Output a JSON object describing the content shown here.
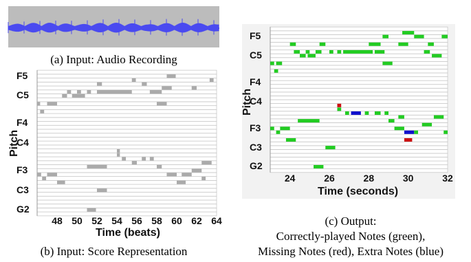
{
  "figure": {
    "panel_a": {
      "caption": "(a) Input: Audio Recording",
      "waveform_color": "#4a4af0",
      "background_color": "#bcbcbc"
    },
    "panel_b": {
      "caption": "(b) Input: Score Representation",
      "ylabel": "Pitch",
      "xlabel": "Time (beats)",
      "pitch_labels": [
        "F5",
        "C5",
        "F4",
        "C4",
        "F3",
        "C3",
        "G2"
      ],
      "note_color": "#aaaaaa"
    },
    "panel_c": {
      "caption_line1": "(c) Output:",
      "caption_line2": "Correctly-played Notes (green),",
      "caption_line3": "Missing Notes (red), Extra Notes (blue)",
      "ylabel": "Pitch",
      "xlabel": "Time (seconds)",
      "pitch_labels": [
        "F5",
        "C5",
        "F4",
        "C4",
        "F3",
        "C3",
        "G2"
      ],
      "colors": {
        "correct": "#22cc22",
        "missing": "#cc1111",
        "extra": "#1111cc"
      }
    }
  },
  "chart_data": [
    {
      "type": "bar",
      "title": "",
      "xlabel": "Time (beats)",
      "ylabel": "Pitch",
      "x_ticks": [
        "48",
        "50",
        "52",
        "54",
        "56",
        "58",
        "60",
        "62",
        "64"
      ],
      "xlim": [
        46,
        64
      ],
      "y_tick_labels": [
        "F5",
        "C5",
        "F4",
        "C4",
        "F3",
        "C3",
        "G2"
      ],
      "y_tick_midi": [
        77,
        72,
        65,
        60,
        53,
        48,
        43
      ],
      "ylim": [
        42,
        78
      ],
      "notes": [
        {
          "start": 59.0,
          "end": 59.9,
          "pitch": 77
        },
        {
          "start": 55.5,
          "end": 55.9,
          "pitch": 76
        },
        {
          "start": 63.3,
          "end": 63.7,
          "pitch": 76
        },
        {
          "start": 52.0,
          "end": 52.5,
          "pitch": 75
        },
        {
          "start": 56.5,
          "end": 57.0,
          "pitch": 75
        },
        {
          "start": 58.5,
          "end": 59.5,
          "pitch": 74
        },
        {
          "start": 61.5,
          "end": 62.0,
          "pitch": 74
        },
        {
          "start": 49.0,
          "end": 49.4,
          "pitch": 73
        },
        {
          "start": 50.0,
          "end": 50.4,
          "pitch": 73
        },
        {
          "start": 51.0,
          "end": 51.4,
          "pitch": 73
        },
        {
          "start": 52.0,
          "end": 55.5,
          "pitch": 73
        },
        {
          "start": 57.3,
          "end": 58.5,
          "pitch": 73
        },
        {
          "start": 48.5,
          "end": 49.0,
          "pitch": 72
        },
        {
          "start": 49.5,
          "end": 50.8,
          "pitch": 72
        },
        {
          "start": 46.0,
          "end": 46.3,
          "pitch": 70
        },
        {
          "start": 47.0,
          "end": 48.0,
          "pitch": 70
        },
        {
          "start": 58.0,
          "end": 59.0,
          "pitch": 70
        },
        {
          "start": 46.3,
          "end": 46.7,
          "pitch": 68
        },
        {
          "start": 54.0,
          "end": 54.3,
          "pitch": 58
        },
        {
          "start": 54.0,
          "end": 54.3,
          "pitch": 57
        },
        {
          "start": 54.5,
          "end": 54.9,
          "pitch": 56
        },
        {
          "start": 56.5,
          "end": 56.9,
          "pitch": 56
        },
        {
          "start": 57.3,
          "end": 57.7,
          "pitch": 56
        },
        {
          "start": 55.5,
          "end": 56.0,
          "pitch": 55
        },
        {
          "start": 62.5,
          "end": 63.5,
          "pitch": 55
        },
        {
          "start": 51.0,
          "end": 53.0,
          "pitch": 54
        },
        {
          "start": 58.0,
          "end": 58.5,
          "pitch": 54
        },
        {
          "start": 61.5,
          "end": 62.5,
          "pitch": 53
        },
        {
          "start": 46.0,
          "end": 46.4,
          "pitch": 52
        },
        {
          "start": 47.0,
          "end": 48.0,
          "pitch": 52
        },
        {
          "start": 59.0,
          "end": 60.0,
          "pitch": 52
        },
        {
          "start": 60.5,
          "end": 61.5,
          "pitch": 52
        },
        {
          "start": 46.5,
          "end": 46.9,
          "pitch": 51
        },
        {
          "start": 62.5,
          "end": 62.9,
          "pitch": 51
        },
        {
          "start": 48.0,
          "end": 48.8,
          "pitch": 50
        },
        {
          "start": 60.0,
          "end": 60.9,
          "pitch": 50
        },
        {
          "start": 52.0,
          "end": 53.0,
          "pitch": 48
        },
        {
          "start": 51.0,
          "end": 51.9,
          "pitch": 43
        }
      ]
    },
    {
      "type": "bar",
      "title": "",
      "xlabel": "Time (seconds)",
      "ylabel": "Pitch",
      "x_ticks": [
        "24",
        "26",
        "28",
        "30",
        "32"
      ],
      "xlim": [
        23.0,
        32.0
      ],
      "y_tick_labels": [
        "F5",
        "C5",
        "F4",
        "C4",
        "F3",
        "C3",
        "G2"
      ],
      "y_tick_midi": [
        77,
        72,
        65,
        60,
        53,
        48,
        43
      ],
      "ylim": [
        42,
        79
      ],
      "notes": [
        {
          "start": 29.7,
          "end": 30.3,
          "pitch": 78,
          "kind": "correct"
        },
        {
          "start": 28.7,
          "end": 29.0,
          "pitch": 77,
          "kind": "correct"
        },
        {
          "start": 30.3,
          "end": 30.8,
          "pitch": 77,
          "kind": "correct"
        },
        {
          "start": 31.7,
          "end": 32.0,
          "pitch": 77,
          "kind": "correct"
        },
        {
          "start": 24.0,
          "end": 24.3,
          "pitch": 75,
          "kind": "correct"
        },
        {
          "start": 25.5,
          "end": 25.8,
          "pitch": 75,
          "kind": "correct"
        },
        {
          "start": 28.0,
          "end": 28.6,
          "pitch": 75,
          "kind": "correct"
        },
        {
          "start": 29.5,
          "end": 30.0,
          "pitch": 75,
          "kind": "correct"
        },
        {
          "start": 31.0,
          "end": 31.3,
          "pitch": 75,
          "kind": "correct"
        },
        {
          "start": 24.2,
          "end": 24.5,
          "pitch": 73,
          "kind": "correct"
        },
        {
          "start": 24.8,
          "end": 25.0,
          "pitch": 73,
          "kind": "correct"
        },
        {
          "start": 25.3,
          "end": 25.6,
          "pitch": 73,
          "kind": "correct"
        },
        {
          "start": 26.0,
          "end": 26.2,
          "pitch": 73,
          "kind": "correct"
        },
        {
          "start": 26.4,
          "end": 26.6,
          "pitch": 73,
          "kind": "correct"
        },
        {
          "start": 26.7,
          "end": 28.2,
          "pitch": 73,
          "kind": "correct"
        },
        {
          "start": 28.3,
          "end": 28.8,
          "pitch": 73,
          "kind": "correct"
        },
        {
          "start": 30.8,
          "end": 31.1,
          "pitch": 73,
          "kind": "correct"
        },
        {
          "start": 24.5,
          "end": 24.8,
          "pitch": 72,
          "kind": "correct"
        },
        {
          "start": 24.9,
          "end": 25.3,
          "pitch": 72,
          "kind": "correct"
        },
        {
          "start": 31.2,
          "end": 31.7,
          "pitch": 72,
          "kind": "correct"
        },
        {
          "start": 23.0,
          "end": 23.2,
          "pitch": 70,
          "kind": "correct"
        },
        {
          "start": 23.3,
          "end": 23.6,
          "pitch": 70,
          "kind": "correct"
        },
        {
          "start": 28.7,
          "end": 29.2,
          "pitch": 70,
          "kind": "correct"
        },
        {
          "start": 23.2,
          "end": 23.4,
          "pitch": 68,
          "kind": "correct"
        },
        {
          "start": 26.4,
          "end": 26.6,
          "pitch": 59,
          "kind": "missing"
        },
        {
          "start": 26.4,
          "end": 26.6,
          "pitch": 58,
          "kind": "correct"
        },
        {
          "start": 26.8,
          "end": 27.0,
          "pitch": 57,
          "kind": "correct"
        },
        {
          "start": 27.1,
          "end": 27.6,
          "pitch": 57,
          "kind": "extra"
        },
        {
          "start": 27.8,
          "end": 28.0,
          "pitch": 57,
          "kind": "correct"
        },
        {
          "start": 28.3,
          "end": 28.6,
          "pitch": 57,
          "kind": "correct"
        },
        {
          "start": 28.8,
          "end": 29.0,
          "pitch": 57,
          "kind": "correct"
        },
        {
          "start": 29.5,
          "end": 29.8,
          "pitch": 56,
          "kind": "correct"
        },
        {
          "start": 31.3,
          "end": 31.8,
          "pitch": 56,
          "kind": "correct"
        },
        {
          "start": 24.4,
          "end": 25.5,
          "pitch": 55,
          "kind": "correct"
        },
        {
          "start": 29.0,
          "end": 29.3,
          "pitch": 55,
          "kind": "correct"
        },
        {
          "start": 30.7,
          "end": 31.2,
          "pitch": 54,
          "kind": "correct"
        },
        {
          "start": 23.0,
          "end": 23.2,
          "pitch": 53,
          "kind": "correct"
        },
        {
          "start": 23.5,
          "end": 24.0,
          "pitch": 53,
          "kind": "correct"
        },
        {
          "start": 29.3,
          "end": 29.8,
          "pitch": 53,
          "kind": "correct"
        },
        {
          "start": 23.3,
          "end": 23.5,
          "pitch": 52,
          "kind": "correct"
        },
        {
          "start": 29.8,
          "end": 30.3,
          "pitch": 52,
          "kind": "extra"
        },
        {
          "start": 30.3,
          "end": 30.5,
          "pitch": 52,
          "kind": "correct"
        },
        {
          "start": 31.8,
          "end": 32.0,
          "pitch": 52,
          "kind": "correct"
        },
        {
          "start": 23.8,
          "end": 24.3,
          "pitch": 50,
          "kind": "correct"
        },
        {
          "start": 29.8,
          "end": 30.2,
          "pitch": 50,
          "kind": "missing"
        },
        {
          "start": 25.8,
          "end": 26.3,
          "pitch": 48,
          "kind": "correct"
        },
        {
          "start": 25.2,
          "end": 25.7,
          "pitch": 43,
          "kind": "correct"
        }
      ]
    }
  ]
}
